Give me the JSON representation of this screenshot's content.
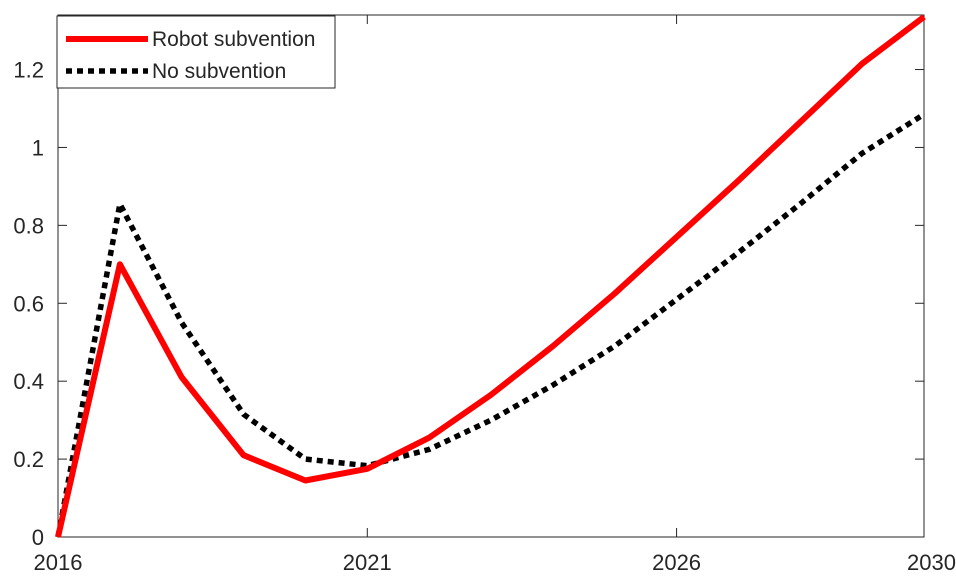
{
  "chart_data": {
    "type": "line",
    "title": "",
    "xlabel": "",
    "ylabel": "",
    "x": [
      2016,
      2017,
      2018,
      2019,
      2020,
      2021,
      2022,
      2023,
      2024,
      2025,
      2026,
      2027,
      2028,
      2029,
      2030
    ],
    "xlim": [
      2016,
      2030
    ],
    "ylim": [
      0,
      1.34
    ],
    "xticks": [
      "2016",
      "2021",
      "2026",
      "2030"
    ],
    "yticks": [
      "0",
      "0.2",
      "0.4",
      "0.6",
      "0.8",
      "1",
      "1.2"
    ],
    "legend_position": "top-left",
    "grid": false,
    "series": [
      {
        "name": "Robot subvention",
        "color": "#ff0000",
        "style": "solid",
        "values": [
          0.0,
          0.7,
          0.41,
          0.21,
          0.145,
          0.175,
          0.255,
          0.365,
          0.49,
          0.625,
          0.77,
          0.915,
          1.065,
          1.215,
          1.335
        ]
      },
      {
        "name": "No subvention",
        "color": "#000000",
        "style": "dotted",
        "values": [
          0.0,
          0.855,
          0.55,
          0.315,
          0.2,
          0.183,
          0.225,
          0.3,
          0.39,
          0.49,
          0.61,
          0.73,
          0.855,
          0.985,
          1.085
        ]
      }
    ]
  }
}
